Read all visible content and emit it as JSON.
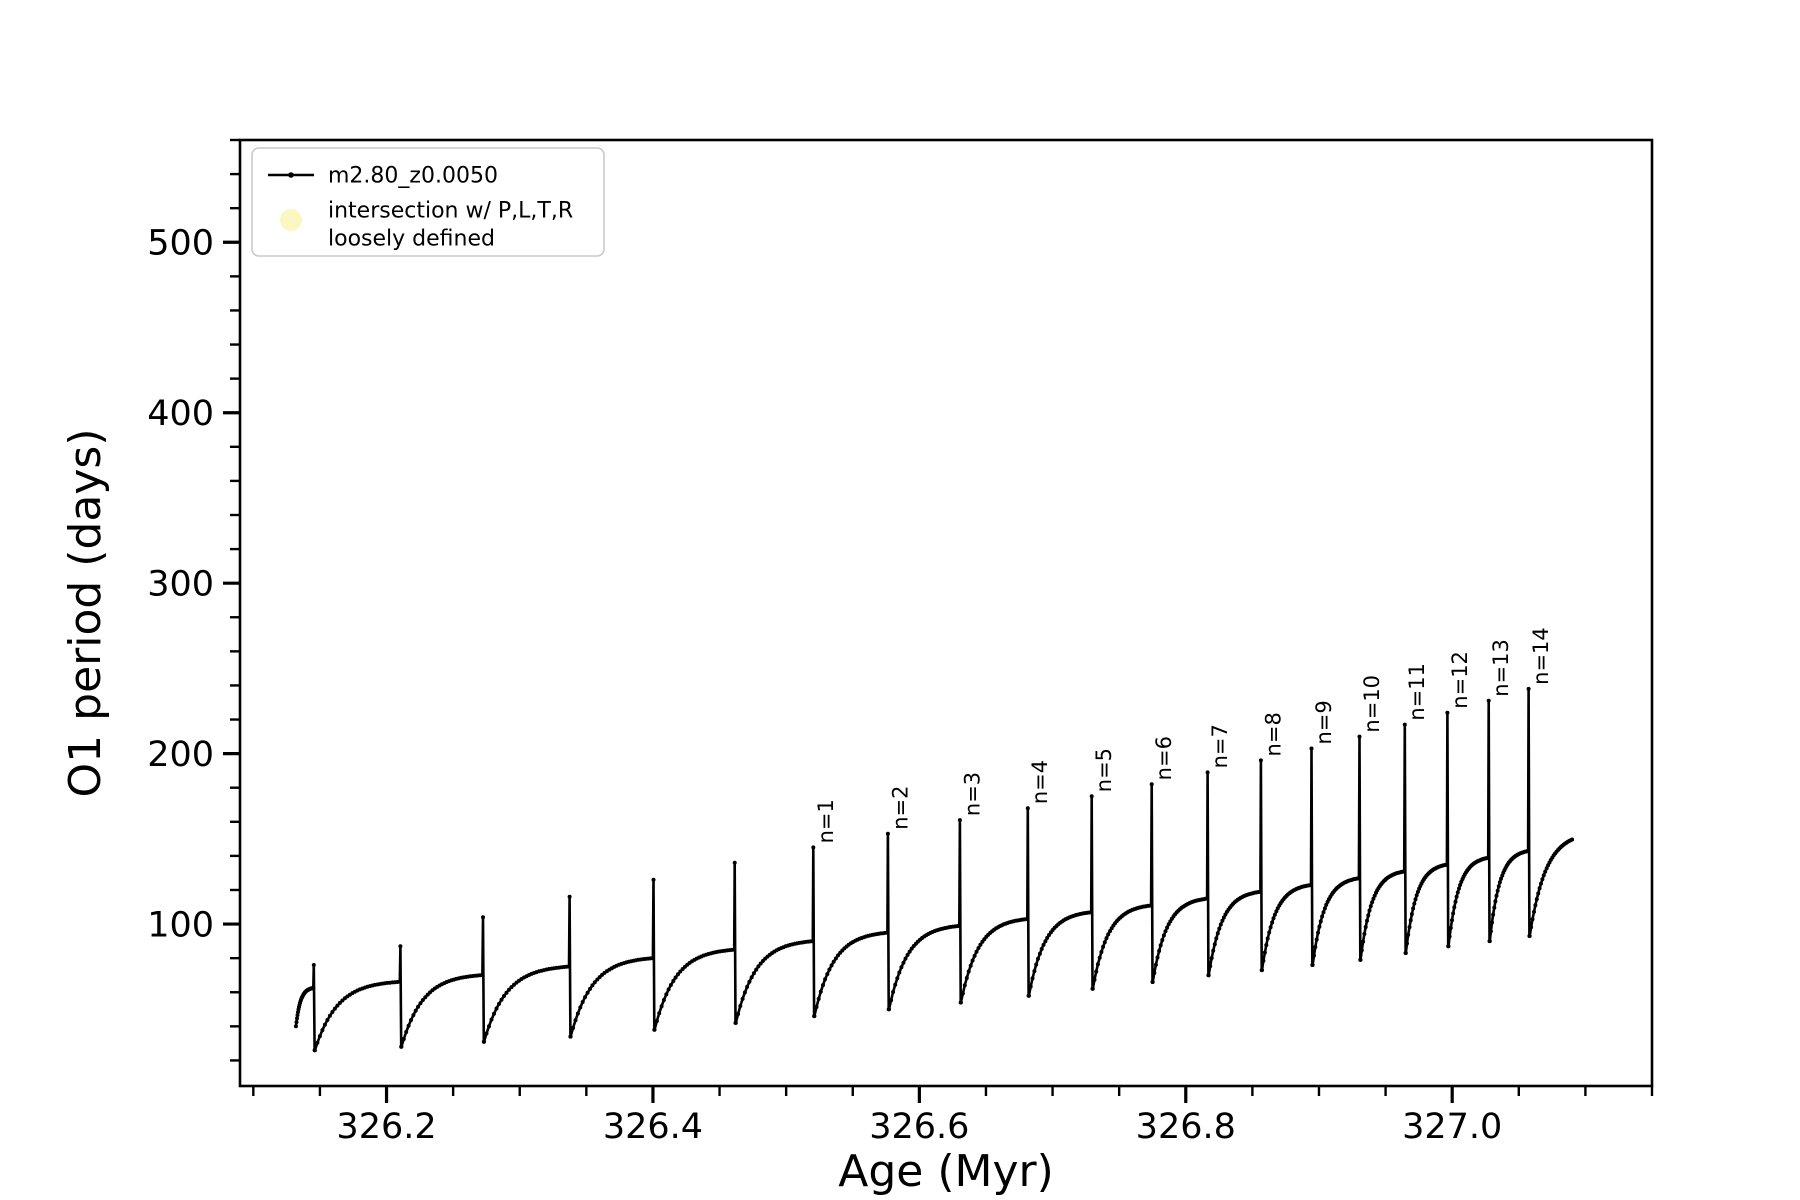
{
  "chart_data": {
    "type": "line",
    "title": "",
    "xlabel": "Age (Myr)",
    "ylabel": "O1 period (days)",
    "xlim": [
      326.09,
      327.15
    ],
    "ylim": [
      5,
      560
    ],
    "xtick_values": [
      326.2,
      326.4,
      326.6,
      326.8,
      327.0
    ],
    "xtick_labels": [
      "326.2",
      "326.4",
      "326.6",
      "326.8",
      "327.0"
    ],
    "ytick_values": [
      100,
      200,
      300,
      400,
      500
    ],
    "ytick_labels": [
      "100",
      "200",
      "300",
      "400",
      "500"
    ],
    "x_minor_step": 0.05,
    "y_minor_step": 20,
    "grid": false,
    "line_color": "#000000",
    "axis_color": "#000000",
    "legend": {
      "position": "upper-left",
      "entries": [
        {
          "label_lines": [
            "m2.80_z0.0050"
          ],
          "marker": "line-with-dot",
          "color": "#000000"
        },
        {
          "label_lines": [
            "intersection w/ P,L,T,R",
            "loosely defined"
          ],
          "marker": "filled-circle",
          "color": "#fbf7bd"
        }
      ]
    },
    "series_name": "m2.80_z0.0050",
    "start_point": {
      "age": 326.132,
      "value": 40
    },
    "end_point": {
      "age": 327.09,
      "value": 152
    },
    "pulse_cycles": [
      {
        "spike_age": 326.145,
        "peak": 76,
        "min_after": 26,
        "plateau_before": 63,
        "label": ""
      },
      {
        "spike_age": 326.21,
        "peak": 87,
        "min_after": 28,
        "plateau_before": 67,
        "label": ""
      },
      {
        "spike_age": 326.272,
        "peak": 104,
        "min_after": 31,
        "plateau_before": 71,
        "label": ""
      },
      {
        "spike_age": 326.337,
        "peak": 116,
        "min_after": 34,
        "plateau_before": 76,
        "label": ""
      },
      {
        "spike_age": 326.4,
        "peak": 126,
        "min_after": 38,
        "plateau_before": 81,
        "label": ""
      },
      {
        "spike_age": 326.461,
        "peak": 136,
        "min_after": 42,
        "plateau_before": 86,
        "label": ""
      },
      {
        "spike_age": 326.52,
        "peak": 145,
        "min_after": 46,
        "plateau_before": 91,
        "label": "n=1"
      },
      {
        "spike_age": 326.576,
        "peak": 153,
        "min_after": 50,
        "plateau_before": 96,
        "label": "n=2"
      },
      {
        "spike_age": 326.63,
        "peak": 161,
        "min_after": 54,
        "plateau_before": 100,
        "label": "n=3"
      },
      {
        "spike_age": 326.681,
        "peak": 168,
        "min_after": 58,
        "plateau_before": 104,
        "label": "n=4"
      },
      {
        "spike_age": 326.729,
        "peak": 175,
        "min_after": 62,
        "plateau_before": 108,
        "label": "n=5"
      },
      {
        "spike_age": 326.774,
        "peak": 182,
        "min_after": 66,
        "plateau_before": 112,
        "label": "n=6"
      },
      {
        "spike_age": 326.816,
        "peak": 189,
        "min_after": 70,
        "plateau_before": 116,
        "label": "n=7"
      },
      {
        "spike_age": 326.856,
        "peak": 196,
        "min_after": 73,
        "plateau_before": 120,
        "label": "n=8"
      },
      {
        "spike_age": 326.894,
        "peak": 203,
        "min_after": 76,
        "plateau_before": 124,
        "label": "n=9"
      },
      {
        "spike_age": 326.93,
        "peak": 210,
        "min_after": 79,
        "plateau_before": 128,
        "label": "n=10"
      },
      {
        "spike_age": 326.964,
        "peak": 217,
        "min_after": 83,
        "plateau_before": 132,
        "label": "n=11"
      },
      {
        "spike_age": 326.996,
        "peak": 224,
        "min_after": 87,
        "plateau_before": 136,
        "label": "n=12"
      },
      {
        "spike_age": 327.027,
        "peak": 231,
        "min_after": 90,
        "plateau_before": 140,
        "label": "n=13"
      },
      {
        "spike_age": 327.057,
        "peak": 238,
        "min_after": 93,
        "plateau_before": 144,
        "label": "n=14"
      }
    ]
  }
}
